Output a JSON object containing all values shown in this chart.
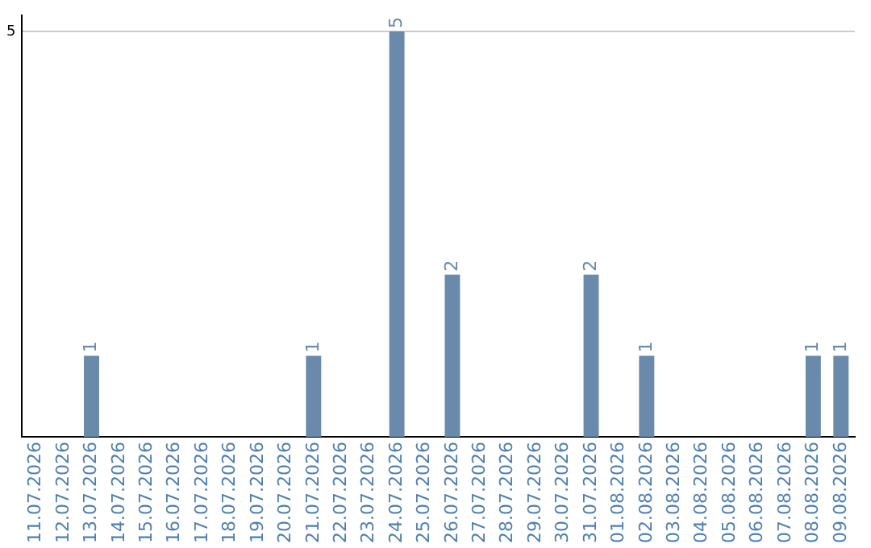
{
  "chart_data": {
    "type": "bar",
    "categories": [
      "11.07.2026",
      "12.07.2026",
      "13.07.2026",
      "14.07.2026",
      "15.07.2026",
      "16.07.2026",
      "17.07.2026",
      "18.07.2026",
      "19.07.2026",
      "20.07.2026",
      "21.07.2026",
      "22.07.2026",
      "23.07.2026",
      "24.07.2026",
      "25.07.2026",
      "26.07.2026",
      "27.07.2026",
      "28.07.2026",
      "29.07.2026",
      "30.07.2026",
      "31.07.2026",
      "01.08.2026",
      "02.08.2026",
      "03.08.2026",
      "04.08.2026",
      "05.08.2026",
      "06.08.2026",
      "07.08.2026",
      "08.08.2026",
      "09.08.2026"
    ],
    "values": [
      0,
      0,
      1,
      0,
      0,
      0,
      0,
      0,
      0,
      0,
      1,
      0,
      0,
      5,
      0,
      2,
      0,
      0,
      0,
      0,
      2,
      0,
      1,
      0,
      0,
      0,
      0,
      0,
      1,
      1
    ],
    "value_labels": [
      null,
      null,
      "1",
      null,
      null,
      null,
      null,
      null,
      null,
      null,
      "1",
      null,
      null,
      "5",
      null,
      "2",
      null,
      null,
      null,
      null,
      "2",
      null,
      "1",
      null,
      null,
      null,
      null,
      null,
      "1",
      "1"
    ],
    "color": "#6a8aab",
    "ylim": [
      0,
      5.2
    ],
    "yticks": [
      5
    ],
    "grid": "y",
    "legend": false
  }
}
